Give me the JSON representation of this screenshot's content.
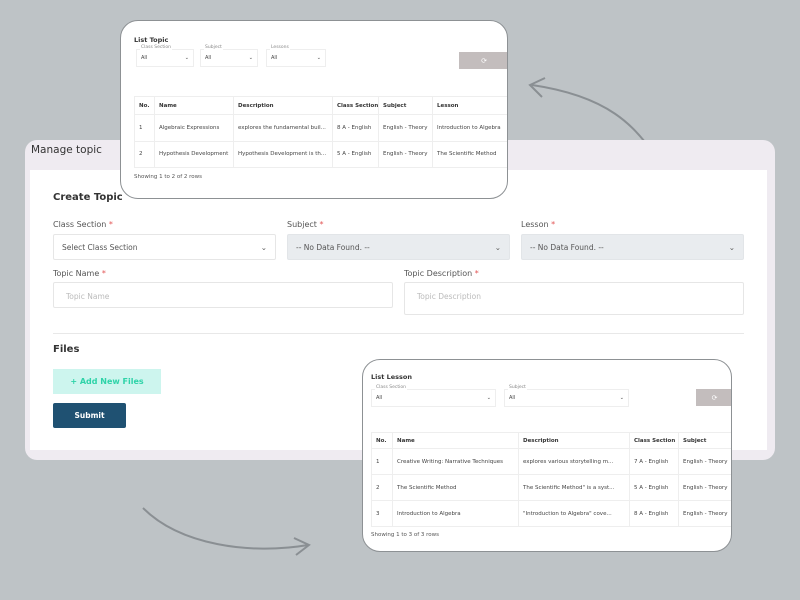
{
  "manage": {
    "title": "Manage topic",
    "form_title": "Create Topic",
    "class_section_label": "Class Section",
    "subject_label": "Subject",
    "lesson_label": "Lesson",
    "required_mark": "*",
    "class_section_value": "Select Class Section",
    "subject_value": "-- No Data Found. --",
    "lesson_value": "-- No Data Found. --",
    "topic_name_label": "Topic Name",
    "topic_name_placeholder": "Topic Name",
    "topic_desc_label": "Topic Description",
    "topic_desc_placeholder": "Topic Description",
    "files_title": "Files",
    "add_files_label": "Add New Files",
    "submit_label": "Submit"
  },
  "list_topic": {
    "title": "List Topic",
    "filters": [
      {
        "label": "Class Section",
        "value": "All"
      },
      {
        "label": "Subject",
        "value": "All"
      },
      {
        "label": "Lessons",
        "value": "All"
      }
    ],
    "columns": [
      "No.",
      "Name",
      "Description",
      "Class Section",
      "Subject",
      "Lesson"
    ],
    "rows": [
      [
        "1",
        "Algebraic Expressions",
        "explores the fundamental buil...",
        "8 A - English",
        "English - Theory",
        "Introduction to Algebra"
      ],
      [
        "2",
        "Hypothesis Development",
        "Hypothesis Development is th...",
        "5 A - English",
        "English - Theory",
        "The Scientific Method"
      ]
    ],
    "footer": "Showing 1 to 2 of 2 rows"
  },
  "list_lesson": {
    "title": "List Lesson",
    "filters": [
      {
        "label": "Class Section",
        "value": "All"
      },
      {
        "label": "Subject",
        "value": "All"
      }
    ],
    "columns": [
      "No.",
      "Name",
      "Description",
      "Class Section",
      "Subject"
    ],
    "rows": [
      [
        "1",
        "Creative Writing: Narrative Techniques",
        "explores various storytelling m...",
        "7 A - English",
        "English - Theory"
      ],
      [
        "2",
        "The Scientific Method",
        "The Scientific Method\" is a syst...",
        "5 A - English",
        "English - Theory"
      ],
      [
        "3",
        "Introduction to Algebra",
        "\"Introduction to Algebra\" cove...",
        "8 A - English",
        "English - Theory"
      ]
    ],
    "footer": "Showing 1 to 3 of 3 rows"
  },
  "colors": {
    "background": "#bec3c6",
    "panel": "#efebf1",
    "submit": "#1f5172",
    "add_files_bg": "#cdf5ee",
    "add_files_text": "#2ed3a8",
    "refresh": "#c3bdbd",
    "required": "#e25555"
  },
  "icons": [
    "chevron-down-icon",
    "plus-icon",
    "refresh-icon",
    "curved-arrow-icon"
  ]
}
